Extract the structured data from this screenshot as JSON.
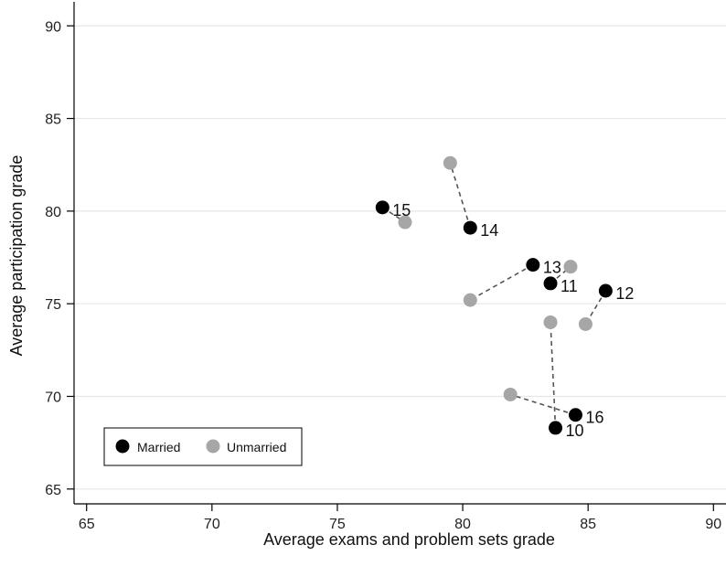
{
  "chart_data": {
    "type": "scatter",
    "title": "",
    "xlabel": "Average exams and problem sets grade",
    "ylabel": "Average participation grade",
    "xlim": [
      64.5,
      90.5
    ],
    "ylim": [
      64.2,
      91
    ],
    "x_ticks": [
      65,
      70,
      75,
      80,
      85,
      90
    ],
    "y_ticks": [
      65,
      70,
      75,
      80,
      85,
      90
    ],
    "grid": "horizontal",
    "legend_position": "bottom-left",
    "series": [
      {
        "name": "Married",
        "color": "#000000",
        "points": [
          {
            "label": "10",
            "x": 83.7,
            "y": 68.3
          },
          {
            "label": "11",
            "x": 83.5,
            "y": 76.1
          },
          {
            "label": "12",
            "x": 85.7,
            "y": 75.7
          },
          {
            "label": "13",
            "x": 82.8,
            "y": 77.1
          },
          {
            "label": "14",
            "x": 80.3,
            "y": 79.1
          },
          {
            "label": "15",
            "x": 76.8,
            "y": 80.2
          },
          {
            "label": "16",
            "x": 84.5,
            "y": 69.0
          }
        ]
      },
      {
        "name": "Unmarried",
        "color": "#a6a6a6",
        "points": [
          {
            "pair": "10",
            "x": 83.5,
            "y": 74.0
          },
          {
            "pair": "11",
            "x": 84.3,
            "y": 77.0
          },
          {
            "pair": "12",
            "x": 84.9,
            "y": 73.9
          },
          {
            "pair": "13",
            "x": 80.3,
            "y": 75.2
          },
          {
            "pair": "14",
            "x": 79.5,
            "y": 82.6
          },
          {
            "pair": "15",
            "x": 77.7,
            "y": 79.4
          },
          {
            "pair": "16",
            "x": 81.9,
            "y": 70.1
          }
        ]
      }
    ]
  }
}
